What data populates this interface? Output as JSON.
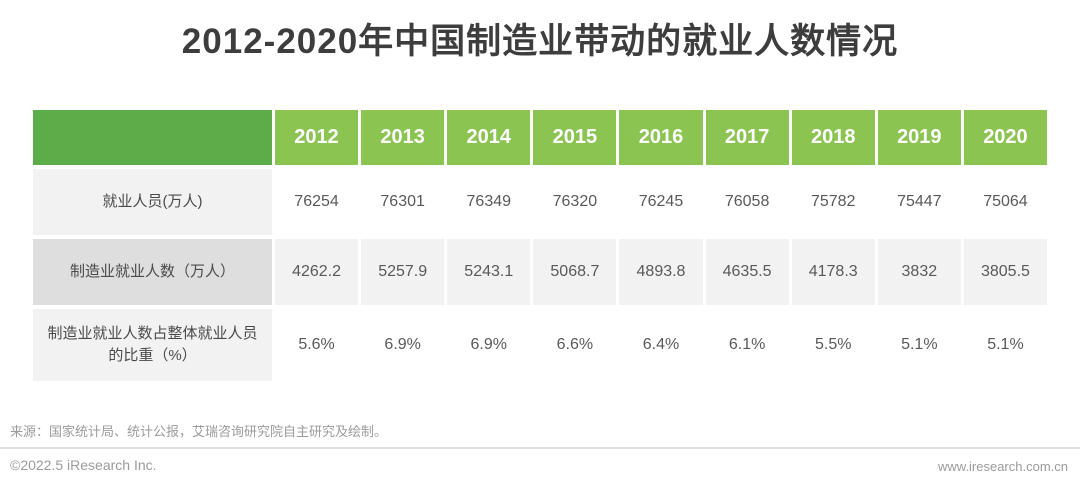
{
  "title": "2012-2020年中国制造业带动的就业人数情况",
  "colors": {
    "header_corner_green": "#5CAD49",
    "header_year_green": "#8CC452",
    "label_light_gray": "#F2F2F2",
    "label_dark_gray": "#DEDEDE",
    "value_shaded_gray": "#F2F2F2",
    "title_text": "#3d3d3d",
    "cell_text": "#595959",
    "footer_text": "#9b9b9b"
  },
  "chart_data": {
    "type": "table",
    "title": "2012-2020年中国制造业带动的就业人数情况",
    "categories": [
      "2012",
      "2013",
      "2014",
      "2015",
      "2016",
      "2017",
      "2018",
      "2019",
      "2020"
    ],
    "rows": [
      {
        "label": "就业人员(万人)",
        "values": [
          "76254",
          "76301",
          "76349",
          "76320",
          "76245",
          "76058",
          "75782",
          "75447",
          "75064"
        ]
      },
      {
        "label": "制造业就业人数（万人）",
        "values": [
          "4262.2",
          "5257.9",
          "5243.1",
          "5068.7",
          "4893.8",
          "4635.5",
          "4178.3",
          "3832",
          "3805.5"
        ]
      },
      {
        "label": "制造业就业人数占整体就业人员的比重（%）",
        "values": [
          "5.6%",
          "6.9%",
          "6.9%",
          "6.6%",
          "6.4%",
          "6.1%",
          "5.5%",
          "5.1%",
          "5.1%"
        ]
      }
    ],
    "layout": {
      "grid": false,
      "header_position": "top",
      "label_column_position": "left"
    }
  },
  "footer": {
    "source": "来源：国家统计局、统计公报，艾瑞咨询研究院自主研究及绘制。",
    "copyright": "©2022.5 iResearch Inc.",
    "website": "www.iresearch.com.cn"
  }
}
